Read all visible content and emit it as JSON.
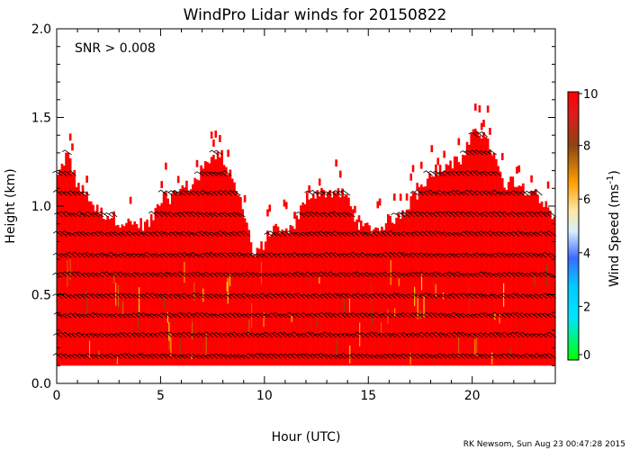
{
  "chart_data": {
    "type": "heatmap",
    "title": "WindPro Lidar winds for 20150822",
    "xlabel": "Hour (UTC)",
    "ylabel": "Height (km)",
    "annotation": "SNR > 0.008",
    "credit": "RK Newsom, Sun Aug 23 00:47:28 2015",
    "xlim": [
      0,
      24
    ],
    "ylim": [
      0,
      2.0
    ],
    "x_ticks": [
      "0",
      "5",
      "10",
      "15",
      "20"
    ],
    "x_tick_values": [
      0,
      5,
      10,
      15,
      20
    ],
    "y_ticks": [
      "0.0",
      "0.5",
      "1.0",
      "1.5",
      "2.0"
    ],
    "y_tick_values": [
      0.0,
      0.5,
      1.0,
      1.5,
      2.0
    ],
    "colorbar": {
      "label": "Wind Speed (ms",
      "label_sup": "-1",
      "label_close": ")",
      "range": [
        0,
        10
      ],
      "ticks": [
        "0",
        "2",
        "4",
        "6",
        "8",
        "10"
      ],
      "tick_values": [
        0,
        2,
        4,
        6,
        8,
        10
      ],
      "colors": [
        "#00ff00",
        "#00e5ff",
        "#3a6bff",
        "#ffa000",
        "#8b4513",
        "#ff0000"
      ]
    },
    "dominant_color": "#ff0000",
    "data_top_profile_hours": [
      0,
      0.5,
      1,
      1.5,
      2,
      2.5,
      3,
      3.5,
      4,
      4.5,
      5,
      5.5,
      6,
      6.5,
      7,
      7.5,
      8,
      8.5,
      9,
      9.5,
      10,
      10.5,
      11,
      11.5,
      12,
      12.5,
      13,
      13.5,
      14,
      14.5,
      15,
      15.5,
      16,
      16.5,
      17,
      17.5,
      18,
      18.5,
      19,
      19.5,
      20,
      20.5,
      21,
      21.5,
      22,
      22.5,
      23,
      23.5,
      24
    ],
    "data_top_profile_km": [
      1.15,
      1.3,
      1.12,
      1.05,
      0.97,
      0.95,
      0.92,
      0.9,
      0.9,
      0.9,
      1.05,
      1.05,
      1.1,
      1.12,
      1.2,
      1.3,
      1.28,
      1.12,
      1.0,
      0.7,
      0.8,
      0.88,
      0.85,
      0.9,
      1.05,
      1.08,
      1.08,
      1.08,
      1.05,
      0.88,
      0.88,
      0.88,
      0.92,
      0.95,
      1.02,
      1.1,
      1.2,
      1.2,
      1.25,
      1.25,
      1.4,
      1.4,
      1.3,
      1.12,
      1.15,
      1.1,
      1.1,
      1.0,
      0.95
    ],
    "data_bottom_km": 0.1,
    "barb_rows_km": [
      0.15,
      0.27,
      0.38,
      0.49,
      0.61,
      0.72,
      0.84,
      0.95,
      1.07,
      1.18,
      1.3,
      1.4
    ]
  }
}
